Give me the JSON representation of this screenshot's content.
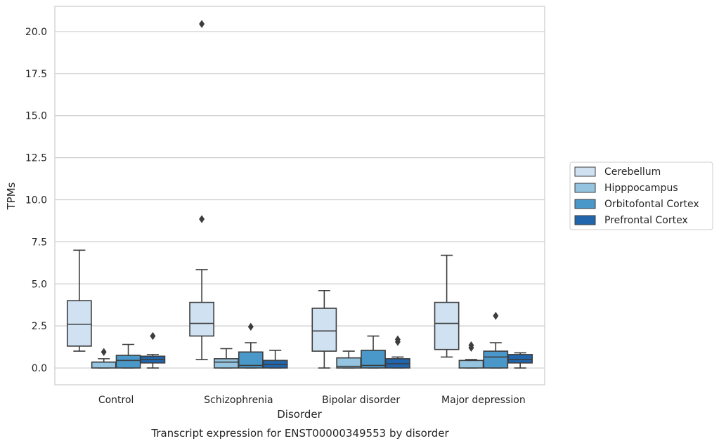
{
  "caption": "Transcript expression for ENST00000349553 by disorder",
  "chart_data": {
    "type": "box",
    "title": "",
    "xlabel": "Disorder",
    "ylabel": "TPMs",
    "ylim": [
      -1.0,
      21.5
    ],
    "yticks": [
      0.0,
      2.5,
      5.0,
      7.5,
      10.0,
      12.5,
      15.0,
      17.5,
      20.0
    ],
    "ytick_labels": [
      "0.0",
      "2.5",
      "5.0",
      "7.5",
      "10.0",
      "12.5",
      "15.0",
      "17.5",
      "20.0"
    ],
    "grid": "horizontal",
    "legend_position": "right",
    "categories": [
      "Control",
      "Schizophrenia",
      "Bipolar disorder",
      "Major depression"
    ],
    "series": [
      {
        "name": "Cerebellum",
        "color": "#d0e1f2",
        "boxes": [
          {
            "whisker_low": 1.0,
            "q1": 1.3,
            "median": 2.6,
            "q3": 4.0,
            "whisker_high": 7.0,
            "outliers": []
          },
          {
            "whisker_low": 0.5,
            "q1": 1.9,
            "median": 2.65,
            "q3": 3.9,
            "whisker_high": 5.85,
            "outliers": [
              8.85,
              20.45
            ]
          },
          {
            "whisker_low": 0.0,
            "q1": 1.0,
            "median": 2.2,
            "q3": 3.55,
            "whisker_high": 4.6,
            "outliers": []
          },
          {
            "whisker_low": 0.65,
            "q1": 1.1,
            "median": 2.65,
            "q3": 3.9,
            "whisker_high": 6.7,
            "outliers": []
          }
        ]
      },
      {
        "name": "Hipppocampus",
        "color": "#94c4df",
        "boxes": [
          {
            "whisker_low": 0.0,
            "q1": 0.0,
            "median": 0.35,
            "q3": 0.35,
            "whisker_high": 0.55,
            "outliers": [
              0.95
            ]
          },
          {
            "whisker_low": 0.0,
            "q1": 0.0,
            "median": 0.35,
            "q3": 0.55,
            "whisker_high": 1.15,
            "outliers": []
          },
          {
            "whisker_low": 0.0,
            "q1": 0.0,
            "median": 0.1,
            "q3": 0.6,
            "whisker_high": 1.0,
            "outliers": []
          },
          {
            "whisker_low": 0.0,
            "q1": 0.0,
            "median": 0.45,
            "q3": 0.45,
            "whisker_high": 0.5,
            "outliers": [
              1.2,
              1.35
            ]
          }
        ]
      },
      {
        "name": "Orbitofontal Cortex",
        "color": "#4a98c9",
        "boxes": [
          {
            "whisker_low": 0.0,
            "q1": 0.0,
            "median": 0.45,
            "q3": 0.75,
            "whisker_high": 1.4,
            "outliers": []
          },
          {
            "whisker_low": 0.0,
            "q1": 0.0,
            "median": 0.15,
            "q3": 0.95,
            "whisker_high": 1.5,
            "outliers": [
              2.45
            ]
          },
          {
            "whisker_low": 0.0,
            "q1": 0.0,
            "median": 0.15,
            "q3": 1.05,
            "whisker_high": 1.9,
            "outliers": []
          },
          {
            "whisker_low": 0.0,
            "q1": 0.0,
            "median": 0.65,
            "q3": 1.0,
            "whisker_high": 1.5,
            "outliers": [
              3.1
            ]
          }
        ]
      },
      {
        "name": "Prefrontal Cortex",
        "color": "#2166ac",
        "boxes": [
          {
            "whisker_low": 0.0,
            "q1": 0.3,
            "median": 0.5,
            "q3": 0.7,
            "whisker_high": 0.8,
            "outliers": [
              1.9
            ]
          },
          {
            "whisker_low": 0.0,
            "q1": 0.0,
            "median": 0.2,
            "q3": 0.45,
            "whisker_high": 1.05,
            "outliers": []
          },
          {
            "whisker_low": 0.0,
            "q1": 0.0,
            "median": 0.25,
            "q3": 0.55,
            "whisker_high": 0.65,
            "outliers": [
              1.55,
              1.7
            ]
          },
          {
            "whisker_low": 0.0,
            "q1": 0.3,
            "median": 0.5,
            "q3": 0.8,
            "whisker_high": 0.9,
            "outliers": []
          }
        ]
      }
    ]
  }
}
